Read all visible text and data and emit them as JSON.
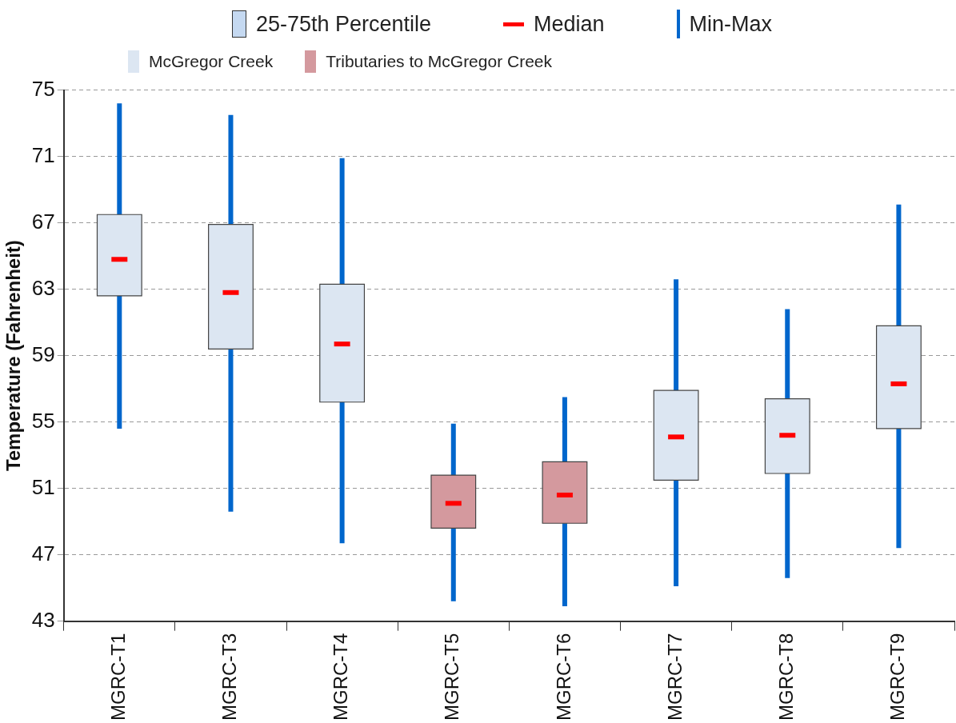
{
  "chart_data": {
    "type": "box",
    "ylabel": "Temperature (Fahrenheit)",
    "categories": [
      "MGRC-T1",
      "MGRC-T3",
      "MGRC-T4",
      "MGRC-T5",
      "MGRC-T6",
      "MGRC-T7",
      "MGRC-T8",
      "MGRC-T9"
    ],
    "series": [
      {
        "name": "McGregor Creek",
        "color": "#dce6f2",
        "boxes": [
          {
            "low": 54.6,
            "q1": 62.6,
            "median": 64.8,
            "q3": 67.5,
            "high": 74.2
          },
          {
            "low": 49.6,
            "q1": 59.4,
            "median": 62.8,
            "q3": 66.9,
            "high": 73.5
          },
          {
            "low": 47.7,
            "q1": 56.2,
            "median": 59.7,
            "q3": 63.3,
            "high": 70.9
          },
          null,
          null,
          {
            "low": 45.1,
            "q1": 51.5,
            "median": 54.1,
            "q3": 56.9,
            "high": 63.6
          },
          {
            "low": 45.6,
            "q1": 51.9,
            "median": 54.2,
            "q3": 56.4,
            "high": 61.8
          },
          {
            "low": 47.4,
            "q1": 54.6,
            "median": 57.3,
            "q3": 60.8,
            "high": 68.1
          }
        ]
      },
      {
        "name": "Tributaries to McGregor Creek",
        "color": "#d4999e",
        "boxes": [
          null,
          null,
          null,
          {
            "low": 44.2,
            "q1": 48.6,
            "median": 50.1,
            "q3": 51.8,
            "high": 54.9
          },
          {
            "low": 43.9,
            "q1": 48.9,
            "median": 50.6,
            "q3": 52.6,
            "high": 56.5
          },
          null,
          null,
          null
        ]
      }
    ],
    "ylim": [
      43,
      75
    ],
    "yticks": [
      43,
      47,
      51,
      55,
      59,
      63,
      67,
      71,
      75
    ],
    "grid": "y",
    "legend": "top",
    "annotations": [
      "25-75th Percentile",
      "Median",
      "Min-Max"
    ]
  }
}
